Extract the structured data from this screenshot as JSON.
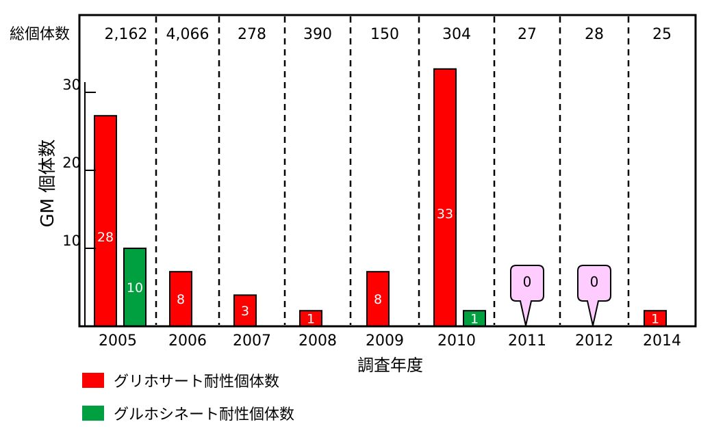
{
  "chart_data": {
    "type": "bar",
    "xlabel": "調査年度",
    "ylabel": "GM 個体数",
    "ylim": [
      0,
      35
    ],
    "yticks": [
      10,
      20,
      30
    ],
    "total_label": "総個体数",
    "categories": [
      "2005",
      "2006",
      "2007",
      "2008",
      "2009",
      "2010",
      "2011",
      "2012",
      "2014"
    ],
    "totals": [
      "2,162",
      "4,066",
      "278",
      "390",
      "150",
      "304",
      "27",
      "28",
      "25"
    ],
    "series": [
      {
        "name": "グリホサート耐性個体数",
        "color": "#ff0000",
        "values": [
          28,
          8,
          3,
          1,
          8,
          33,
          0,
          0,
          1
        ],
        "plot_values": [
          27,
          7,
          4,
          2,
          7,
          33,
          0,
          0,
          2
        ]
      },
      {
        "name": "グルホシネート耐性個体数",
        "color": "#00a040",
        "values": [
          10,
          0,
          0,
          0,
          0,
          1,
          0,
          0,
          0
        ],
        "plot_values": [
          10,
          0,
          0,
          0,
          0,
          2,
          0,
          0,
          0
        ]
      }
    ],
    "callouts": [
      {
        "category": "2011",
        "text": "0"
      },
      {
        "category": "2012",
        "text": "0"
      }
    ],
    "grid": false,
    "legend_position": "bottom-left"
  }
}
